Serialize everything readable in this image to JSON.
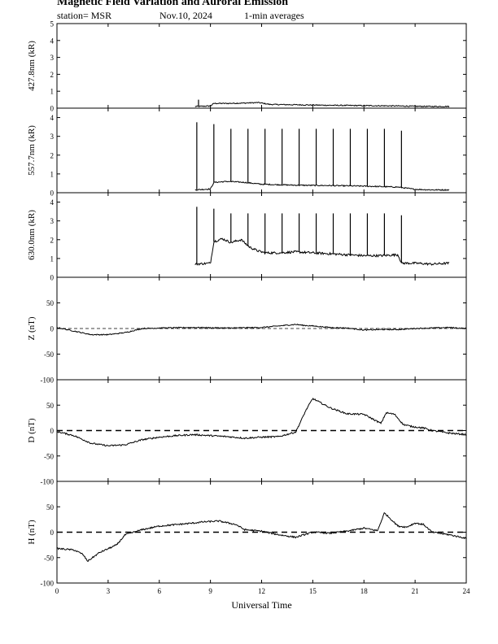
{
  "header": {
    "title": "Magnetic Field Variation and Auroral Emission",
    "station": "station= MSR",
    "date": "Nov.10, 2024",
    "averaging": "1-min averages"
  },
  "chart_data": {
    "type": "line",
    "xlabel": "Universal Time",
    "xlim": [
      0,
      24
    ],
    "xticks": [
      "0",
      "3",
      "6",
      "9",
      "12",
      "15",
      "18",
      "21",
      "24"
    ],
    "panels": [
      {
        "id": "p4278",
        "ylabel": "427.8nm (kR)",
        "ylim": [
          0,
          5
        ],
        "yticks": [
          0,
          1,
          2,
          3,
          4,
          5
        ],
        "series": {
          "x": [
            8.1,
            9.0,
            9.2,
            10.0,
            11.0,
            11.8,
            12.5,
            14.0,
            16.0,
            18.0,
            20.0,
            21.0,
            22.0,
            23.0
          ],
          "y": [
            0.1,
            0.13,
            0.28,
            0.28,
            0.3,
            0.33,
            0.22,
            0.2,
            0.17,
            0.15,
            0.13,
            0.11,
            0.1,
            0.1
          ]
        },
        "noise": 0.03,
        "spikes": [
          {
            "x": 8.3,
            "y": 0.5
          }
        ],
        "zero_dashed": false
      },
      {
        "id": "p5577",
        "ylabel": "557.7nm (kR)",
        "ylim": [
          0,
          4.5
        ],
        "yticks": [
          0,
          1,
          2,
          3,
          4
        ],
        "series": {
          "x": [
            8.1,
            9.0,
            9.2,
            10.0,
            11.0,
            12.0,
            14.0,
            16.0,
            18.0,
            20.0,
            21.0,
            22.0,
            23.0
          ],
          "y": [
            0.15,
            0.2,
            0.55,
            0.6,
            0.55,
            0.45,
            0.4,
            0.38,
            0.35,
            0.3,
            0.18,
            0.15,
            0.15
          ]
        },
        "noise": 0.03,
        "spikes": [
          {
            "x": 8.2,
            "y": 3.75
          },
          {
            "x": 9.2,
            "y": 3.65
          },
          {
            "x": 10.2,
            "y": 3.4
          },
          {
            "x": 11.2,
            "y": 3.4
          },
          {
            "x": 12.2,
            "y": 3.4
          },
          {
            "x": 13.2,
            "y": 3.4
          },
          {
            "x": 14.2,
            "y": 3.4
          },
          {
            "x": 15.2,
            "y": 3.4
          },
          {
            "x": 16.2,
            "y": 3.4
          },
          {
            "x": 17.2,
            "y": 3.4
          },
          {
            "x": 18.2,
            "y": 3.4
          },
          {
            "x": 19.2,
            "y": 3.4
          },
          {
            "x": 20.2,
            "y": 3.3
          }
        ],
        "zero_dashed": false
      },
      {
        "id": "p6300",
        "ylabel": "630.0nm (kR)",
        "ylim": [
          0,
          4.5
        ],
        "yticks": [
          0,
          1,
          2,
          3,
          4
        ],
        "series": {
          "x": [
            8.1,
            9.0,
            9.2,
            9.7,
            10.2,
            10.8,
            11.3,
            11.8,
            12.2,
            13.0,
            14.0,
            15.0,
            16.0,
            17.0,
            18.0,
            19.0,
            20.0,
            20.2,
            21.0,
            22.0,
            23.0
          ],
          "y": [
            0.7,
            0.75,
            1.9,
            2.05,
            1.85,
            2.0,
            1.6,
            1.4,
            1.3,
            1.3,
            1.35,
            1.3,
            1.25,
            1.2,
            1.15,
            1.15,
            1.2,
            0.75,
            0.75,
            0.7,
            0.75
          ]
        },
        "noise": 0.06,
        "spikes": [
          {
            "x": 8.2,
            "y": 3.75
          },
          {
            "x": 9.2,
            "y": 3.65
          },
          {
            "x": 10.2,
            "y": 3.4
          },
          {
            "x": 11.2,
            "y": 3.4
          },
          {
            "x": 12.2,
            "y": 3.4
          },
          {
            "x": 13.2,
            "y": 3.4
          },
          {
            "x": 14.2,
            "y": 3.4
          },
          {
            "x": 15.2,
            "y": 3.4
          },
          {
            "x": 16.2,
            "y": 3.4
          },
          {
            "x": 17.2,
            "y": 3.4
          },
          {
            "x": 18.2,
            "y": 3.4
          },
          {
            "x": 19.2,
            "y": 3.4
          },
          {
            "x": 20.2,
            "y": 3.3
          }
        ],
        "zero_dashed": false
      },
      {
        "id": "pZ",
        "ylabel": "Z (nT)",
        "ylim": [
          -100,
          100
        ],
        "yticks": [
          -100,
          -50,
          0,
          50
        ],
        "series": {
          "x": [
            0,
            1,
            2,
            3,
            4,
            5,
            6,
            8,
            10,
            12,
            13,
            14,
            14.5,
            15,
            16,
            17,
            18,
            19,
            20,
            21,
            22,
            23,
            24
          ],
          "y": [
            2,
            -5,
            -12,
            -12,
            -8,
            0,
            1,
            2,
            1,
            2,
            5,
            8,
            6,
            5,
            2,
            1,
            -3,
            -2,
            -2,
            0,
            1,
            2,
            0
          ]
        },
        "noise": 1,
        "spikes": [],
        "zero_dashed": true
      },
      {
        "id": "pD",
        "ylabel": "D (nT)",
        "ylim": [
          -100,
          100
        ],
        "yticks": [
          -100,
          -50,
          0,
          50
        ],
        "series": {
          "x": [
            0,
            1,
            2,
            3,
            4,
            5,
            6,
            7,
            8,
            9,
            10,
            11,
            12,
            13,
            14,
            14.6,
            15,
            16,
            17,
            18,
            19,
            19.3,
            19.8,
            20.3,
            20.8,
            21.5,
            22,
            23,
            24
          ],
          "y": [
            -2,
            -10,
            -25,
            -30,
            -28,
            -18,
            -13,
            -10,
            -8,
            -10,
            -12,
            -15,
            -13,
            -12,
            -3,
            40,
            63,
            45,
            33,
            32,
            14,
            35,
            32,
            12,
            8,
            5,
            0,
            -5,
            -8
          ]
        },
        "noise": 1.5,
        "spikes": [],
        "zero_dashed": true
      },
      {
        "id": "pH",
        "ylabel": "H (nT)",
        "ylim": [
          -100,
          100
        ],
        "yticks": [
          -100,
          -50,
          0,
          50
        ],
        "series": {
          "x": [
            0,
            1,
            1.5,
            1.8,
            2.5,
            3.5,
            4,
            5,
            6,
            7,
            8,
            8.5,
            9.5,
            10.5,
            11,
            12,
            13,
            14,
            15,
            16,
            17,
            18,
            18.8,
            19.2,
            20,
            20.5,
            21,
            21.5,
            22,
            23,
            24
          ],
          "y": [
            -32,
            -35,
            -43,
            -57,
            -40,
            -25,
            -5,
            5,
            12,
            15,
            18,
            20,
            22,
            15,
            5,
            2,
            -5,
            -10,
            0,
            -2,
            2,
            8,
            3,
            38,
            12,
            10,
            18,
            15,
            0,
            -5,
            -12
          ]
        },
        "noise": 1.5,
        "spikes": [],
        "zero_dashed": true
      }
    ]
  }
}
